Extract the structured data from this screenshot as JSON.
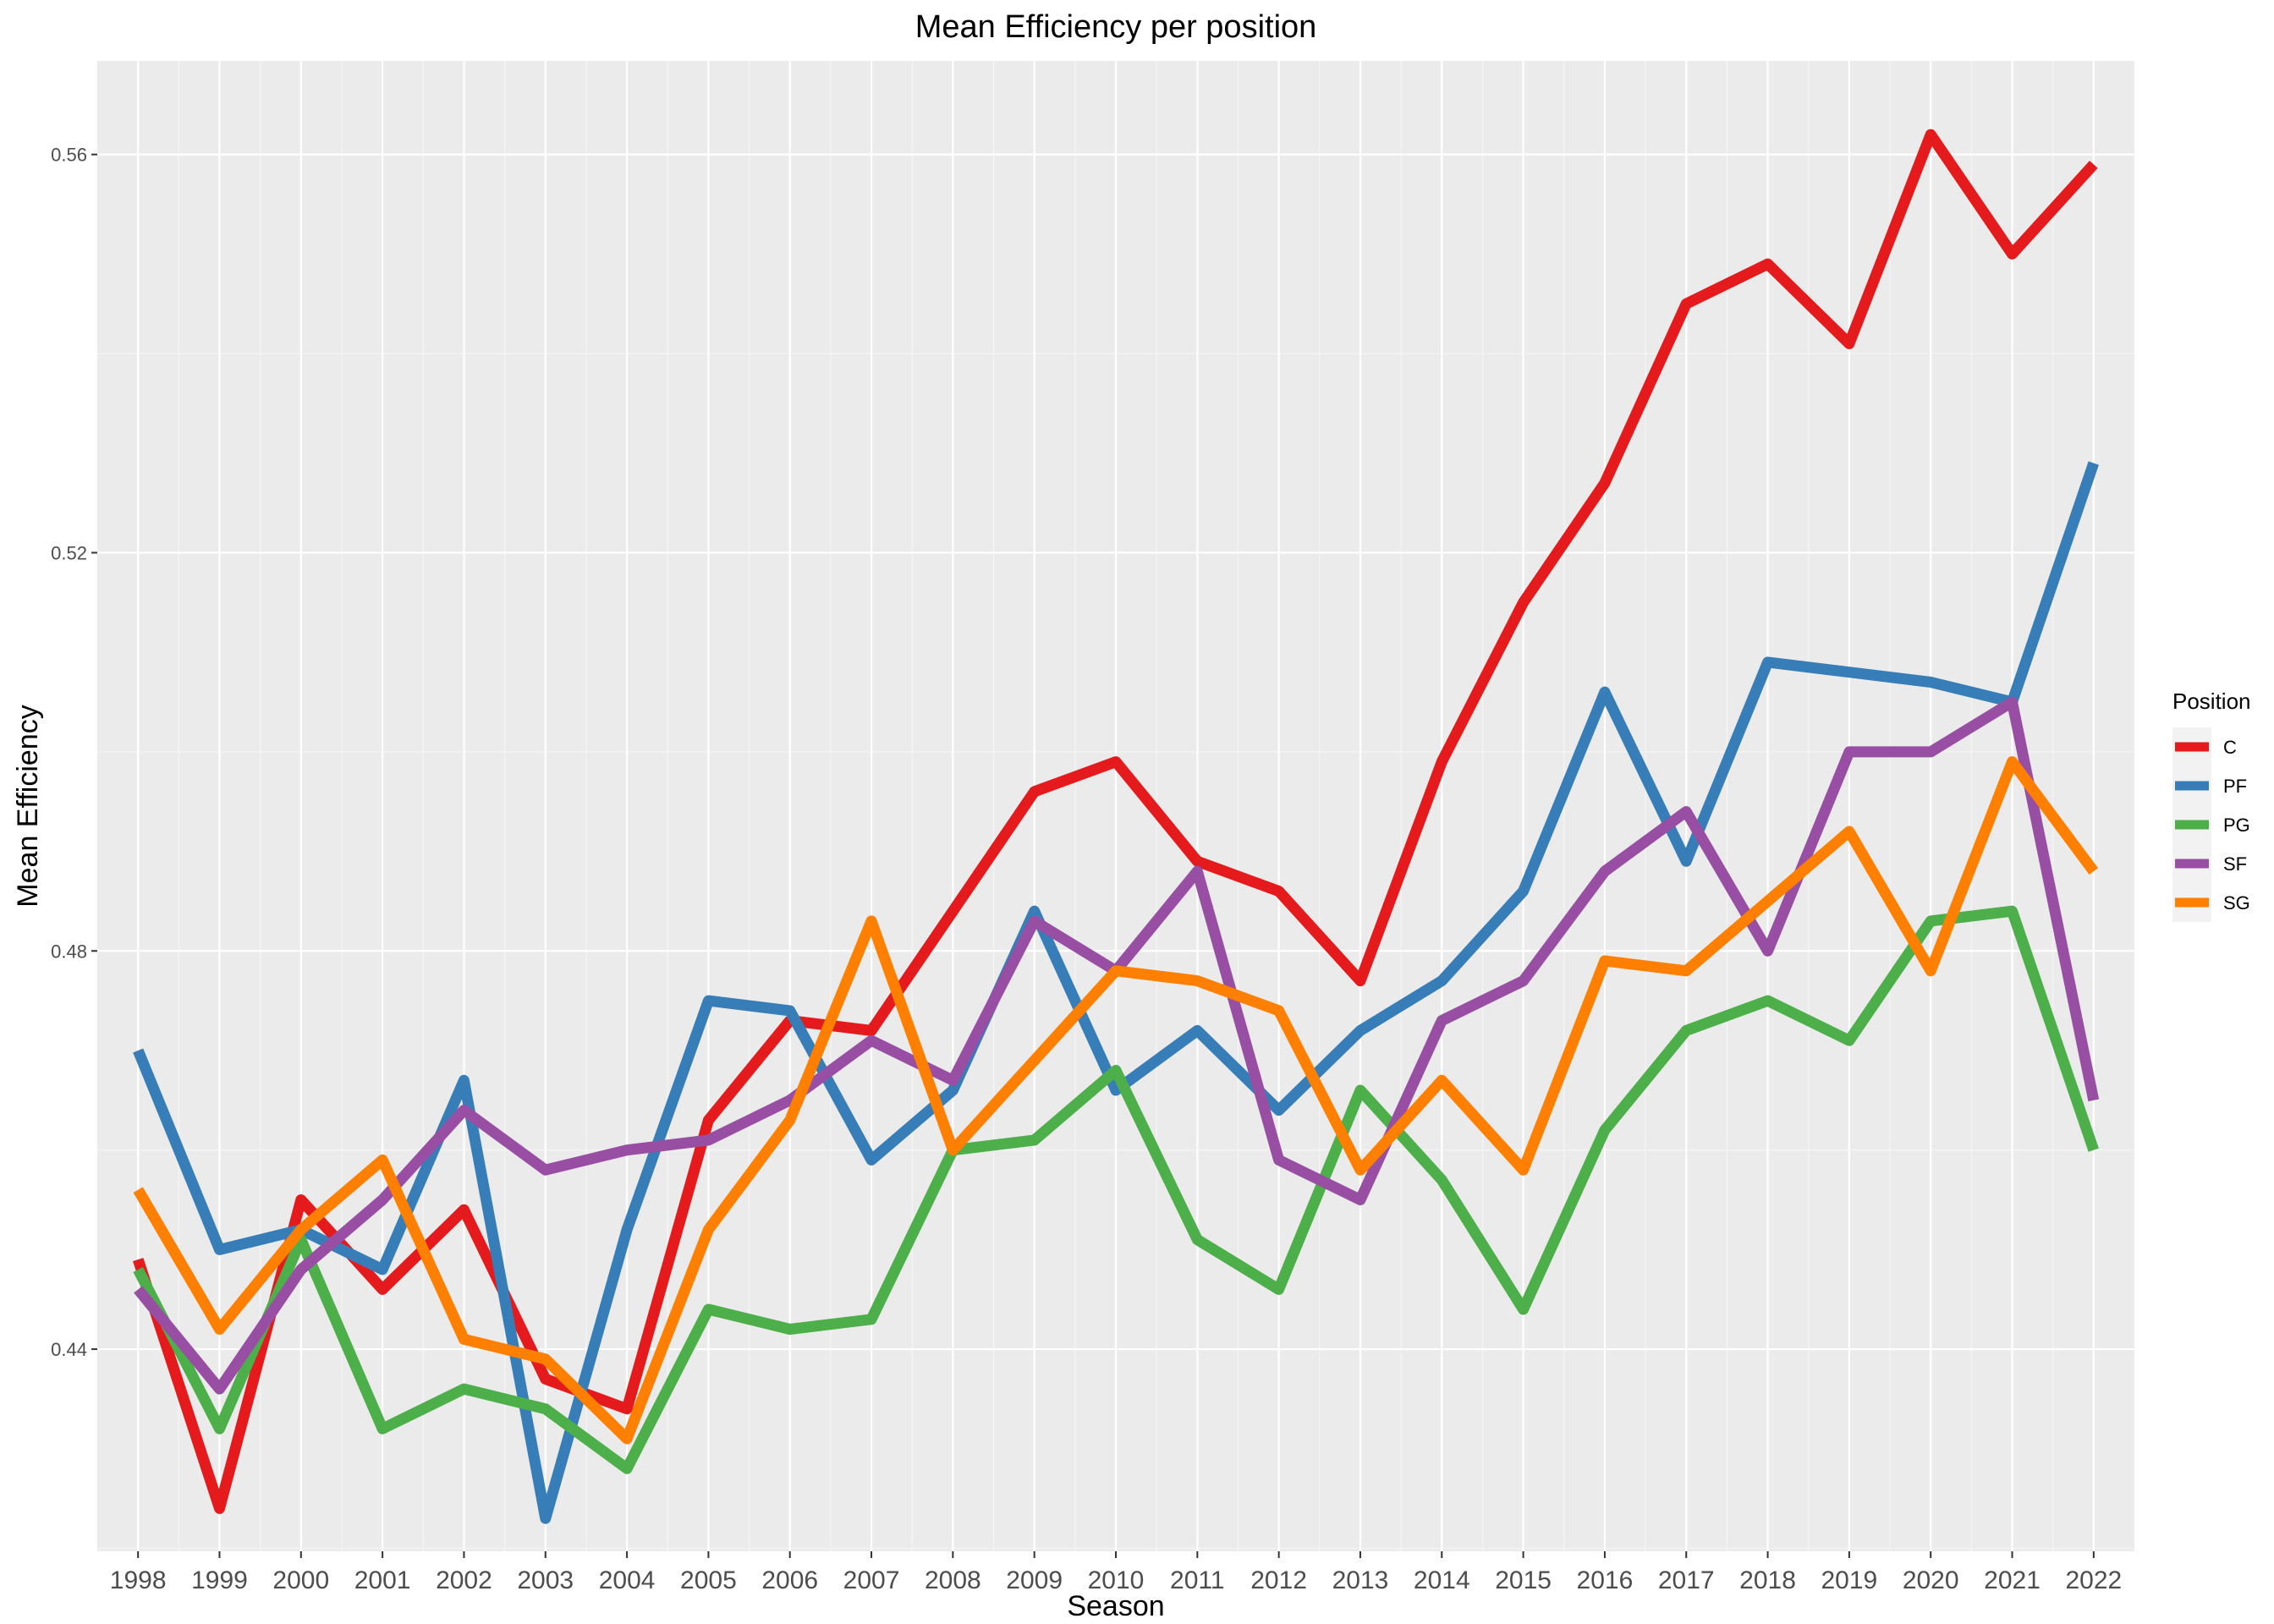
{
  "chart_data": {
    "type": "line",
    "title": "Mean Efficiency per position",
    "xlabel": "Season",
    "ylabel": "Mean Efficiency",
    "x": [
      "1998",
      "1999",
      "2000",
      "2001",
      "2002",
      "2003",
      "2004",
      "2005",
      "2006",
      "2007",
      "2008",
      "2009",
      "2010",
      "2011",
      "2012",
      "2013",
      "2014",
      "2015",
      "2016",
      "2017",
      "2018",
      "2019",
      "2020",
      "2021",
      "2022"
    ],
    "xlim": [
      1997.5,
      2022.5
    ],
    "ylim": [
      0.4197,
      0.5694
    ],
    "yticks": [
      0.44,
      0.48,
      0.52,
      0.56
    ],
    "ytick_labels": [
      "0.44",
      "0.48",
      "0.52",
      "0.56"
    ],
    "grid": true,
    "legend": {
      "title": "Position",
      "placement": "right"
    },
    "series": [
      {
        "name": "C",
        "color": "#E41A1C",
        "values": [
          0.449,
          0.424,
          0.455,
          0.446,
          0.454,
          0.437,
          0.434,
          0.463,
          0.473,
          0.472,
          0.484,
          0.496,
          0.499,
          0.489,
          0.486,
          0.477,
          0.499,
          0.515,
          0.527,
          0.545,
          0.549,
          0.541,
          0.562,
          0.55,
          0.559
        ]
      },
      {
        "name": "PF",
        "color": "#377EB8",
        "values": [
          0.47,
          0.45,
          0.452,
          0.448,
          0.467,
          0.423,
          0.452,
          0.475,
          0.474,
          0.459,
          0.466,
          0.484,
          0.466,
          0.472,
          0.464,
          0.472,
          0.477,
          0.486,
          0.506,
          0.489,
          0.509,
          0.508,
          0.507,
          0.505,
          0.529
        ]
      },
      {
        "name": "PG",
        "color": "#4DAF4A",
        "values": [
          0.448,
          0.432,
          0.451,
          0.432,
          0.436,
          0.434,
          0.428,
          0.444,
          0.442,
          0.443,
          0.46,
          0.461,
          0.468,
          0.451,
          0.446,
          0.466,
          0.457,
          0.444,
          0.462,
          0.472,
          0.475,
          0.471,
          0.483,
          0.484,
          0.46
        ]
      },
      {
        "name": "SF",
        "color": "#984EA3",
        "values": [
          0.446,
          0.436,
          0.448,
          0.455,
          0.464,
          0.458,
          0.46,
          0.461,
          0.465,
          0.471,
          0.467,
          0.483,
          0.478,
          0.488,
          0.459,
          0.455,
          0.473,
          0.477,
          0.488,
          0.494,
          0.48,
          0.5,
          0.5,
          0.505,
          0.465
        ]
      },
      {
        "name": "SG",
        "color": "#FF7F00",
        "values": [
          0.456,
          0.442,
          0.452,
          0.459,
          0.441,
          0.439,
          0.431,
          0.452,
          0.463,
          0.483,
          0.46,
          0.469,
          0.478,
          0.477,
          0.474,
          0.458,
          0.467,
          0.458,
          0.479,
          0.478,
          0.485,
          0.492,
          0.478,
          0.499,
          0.488
        ]
      }
    ]
  }
}
